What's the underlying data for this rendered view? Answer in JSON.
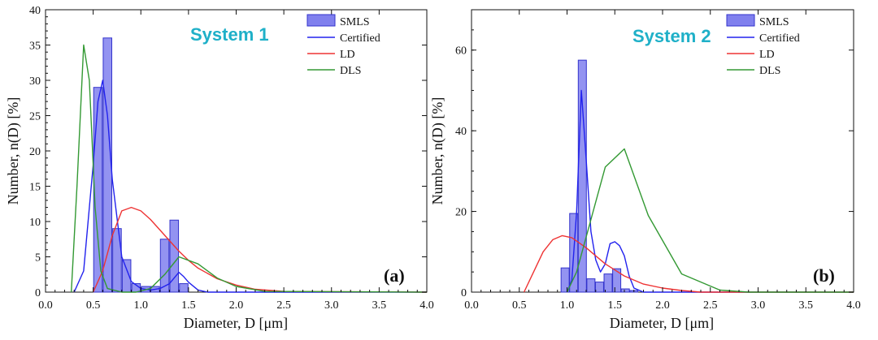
{
  "colors": {
    "smls_fill": "#8080ee",
    "smls_stroke": "#3333cc",
    "certified": "#2222ee",
    "ld": "#ee3333",
    "dls": "#339933",
    "title": "#1fb0c8"
  },
  "chart_data": [
    {
      "type": "bar",
      "title": "System 1",
      "panel_label": "(a)",
      "xlabel": "Diameter, D [μm]",
      "ylabel": "Number, n(D) [%]",
      "xlim": [
        0,
        4
      ],
      "ylim": [
        0,
        40
      ],
      "xticks": [
        "0.0",
        "0.5",
        "1.0",
        "1.5",
        "2.0",
        "2.5",
        "3.0",
        "3.5",
        "4.0"
      ],
      "yticks": [
        "0",
        "5",
        "10",
        "15",
        "20",
        "25",
        "30",
        "35",
        "40"
      ],
      "legend": [
        "SMLS",
        "Certified",
        "LD",
        "DLS"
      ],
      "bars": {
        "name": "SMLS",
        "width": 0.09,
        "x": [
          0.55,
          0.65,
          0.75,
          0.85,
          0.95,
          1.05,
          1.15,
          1.25,
          1.35,
          1.45
        ],
        "values": [
          29,
          36,
          9,
          4.6,
          1.2,
          0.8,
          0.8,
          7.5,
          10.2,
          1.2
        ]
      },
      "series": [
        {
          "name": "Certified",
          "x": [
            0.3,
            0.4,
            0.5,
            0.55,
            0.6,
            0.65,
            0.7,
            0.8,
            0.9,
            1.0,
            1.1,
            1.2,
            1.3,
            1.4,
            1.45,
            1.5,
            1.6,
            1.7,
            4.0
          ],
          "values": [
            0,
            3,
            18,
            27,
            30,
            25,
            16,
            5,
            1.5,
            0.5,
            0.3,
            0.5,
            1.2,
            2.8,
            2.2,
            1.4,
            0.3,
            0,
            0
          ]
        },
        {
          "name": "LD",
          "x": [
            0.5,
            0.6,
            0.7,
            0.8,
            0.9,
            1.0,
            1.1,
            1.2,
            1.3,
            1.4,
            1.5,
            1.6,
            1.8,
            2.0,
            2.2,
            2.5,
            4.0
          ],
          "values": [
            0,
            3,
            8,
            11.5,
            12,
            11.5,
            10.3,
            8.8,
            7.3,
            5.8,
            4.5,
            3.4,
            1.9,
            1.0,
            0.4,
            0.1,
            0
          ]
        },
        {
          "name": "DLS",
          "x": [
            0.27,
            0.33,
            0.4,
            0.46,
            0.52,
            0.58,
            0.65,
            0.8,
            0.95,
            1.1,
            1.25,
            1.4,
            1.6,
            1.8,
            2.0,
            2.3,
            4.0
          ],
          "values": [
            0,
            15,
            35,
            30,
            12,
            3,
            0.5,
            0,
            0,
            0.5,
            2.5,
            5,
            4,
            2,
            0.8,
            0.1,
            0
          ]
        }
      ]
    },
    {
      "type": "bar",
      "title": "System 2",
      "panel_label": "(b)",
      "xlabel": "Diameter, D [μm]",
      "ylabel": "Number, n(D) [%]",
      "xlim": [
        0,
        4
      ],
      "ylim": [
        0,
        70
      ],
      "xticks": [
        "0.0",
        "0.5",
        "1.0",
        "1.5",
        "2.0",
        "2.5",
        "3.0",
        "3.5",
        "4.0"
      ],
      "yticks": [
        "0",
        "20",
        "40",
        "60"
      ],
      "legend": [
        "SMLS",
        "Certified",
        "LD",
        "DLS"
      ],
      "bars": {
        "name": "SMLS",
        "width": 0.085,
        "x": [
          0.98,
          1.07,
          1.16,
          1.25,
          1.34,
          1.43,
          1.52,
          1.61,
          1.7
        ],
        "values": [
          6,
          19.5,
          57.5,
          3.3,
          2.5,
          4.5,
          5.8,
          0.8,
          0.4
        ]
      },
      "series": [
        {
          "name": "Certified",
          "x": [
            1.0,
            1.05,
            1.1,
            1.15,
            1.2,
            1.25,
            1.3,
            1.35,
            1.4,
            1.45,
            1.5,
            1.55,
            1.6,
            1.65,
            1.7,
            1.8,
            4.0
          ],
          "values": [
            0,
            3,
            20,
            50,
            33,
            15,
            8,
            5,
            7,
            12,
            12.5,
            11.5,
            9,
            4,
            1,
            0,
            0
          ]
        },
        {
          "name": "LD",
          "x": [
            0.55,
            0.65,
            0.75,
            0.85,
            0.95,
            1.05,
            1.2,
            1.4,
            1.6,
            1.8,
            2.0,
            2.2,
            2.4,
            4.0
          ],
          "values": [
            0,
            5,
            10,
            13,
            14,
            13.5,
            11,
            7,
            4,
            2,
            1,
            0.4,
            0,
            0
          ]
        },
        {
          "name": "DLS",
          "x": [
            1.0,
            1.1,
            1.25,
            1.4,
            1.6,
            1.85,
            2.2,
            2.6,
            2.9,
            4.0
          ],
          "values": [
            0,
            5,
            18,
            31,
            35.5,
            19,
            4.5,
            0.5,
            0,
            0
          ]
        }
      ]
    }
  ]
}
